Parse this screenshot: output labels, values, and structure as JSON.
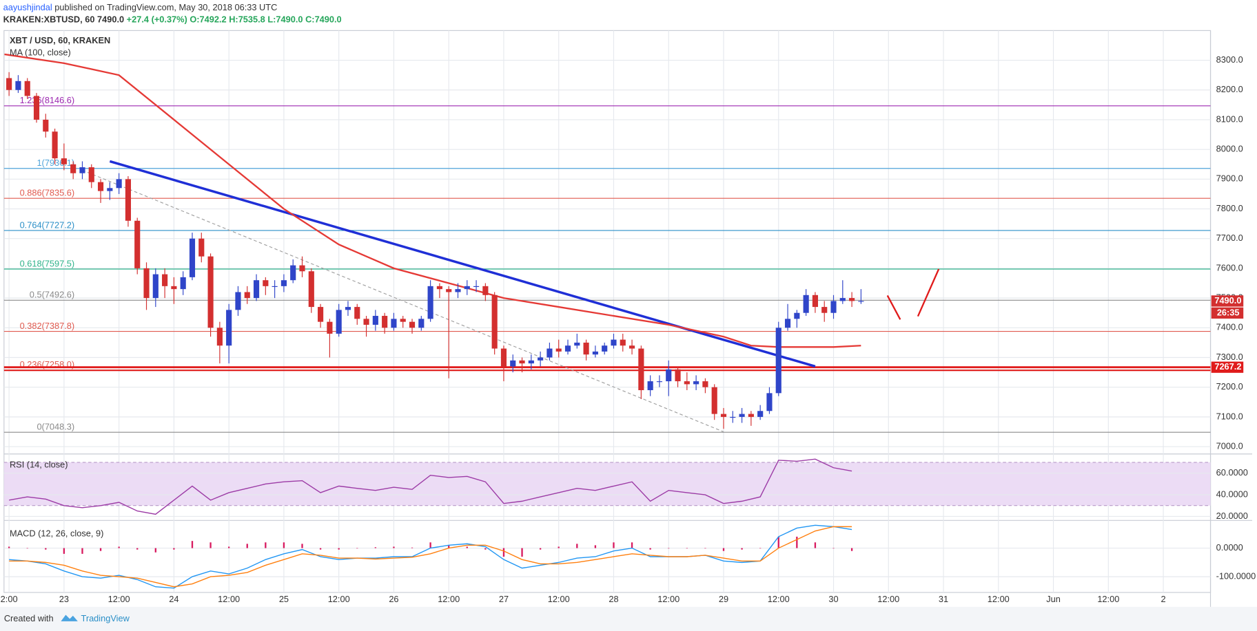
{
  "header": {
    "author": "aayushjindal",
    "published": "published on TradingView.com, May 30, 2018 06:33 UTC",
    "symbol": "KRAKEN:XBTUSD, 60",
    "last": "7490.0",
    "change": "+27.4 (+0.37%)",
    "ohlc": [
      "O:7492.2",
      "H:7535.8",
      "L:7490.0",
      "C:7490.0"
    ]
  },
  "footer": {
    "created": "Created with",
    "brand": "TradingView"
  },
  "chart_data": [
    {
      "type": "candlestick",
      "title": "XBT / USD, 60, KRAKEN",
      "up_color": "#2f45c9",
      "down_color": "#d32f2f",
      "xlim": [
        -13.1,
        250.3
      ],
      "xticks": [
        {
          "value": -12,
          "label": "2:00"
        },
        {
          "value": 0,
          "label": "23"
        },
        {
          "value": 12,
          "label": "12:00"
        },
        {
          "value": 24,
          "label": "24"
        },
        {
          "value": 36,
          "label": "12:00"
        },
        {
          "value": 48,
          "label": "25"
        },
        {
          "value": 60,
          "label": "12:00"
        },
        {
          "value": 72,
          "label": "26"
        },
        {
          "value": 84,
          "label": "12:00"
        },
        {
          "value": 96,
          "label": "27"
        },
        {
          "value": 108,
          "label": "12:00"
        },
        {
          "value": 120,
          "label": "28"
        },
        {
          "value": 132,
          "label": "12:00"
        },
        {
          "value": 144,
          "label": "29"
        },
        {
          "value": 156,
          "label": "12:00"
        },
        {
          "value": 168,
          "label": "30"
        },
        {
          "value": 180,
          "label": "12:00"
        },
        {
          "value": 192,
          "label": "31"
        },
        {
          "value": 204,
          "label": "12:00"
        },
        {
          "value": 216,
          "label": "Jun"
        },
        {
          "value": 228,
          "label": "12:00"
        },
        {
          "value": 240,
          "label": "2"
        }
      ],
      "ylim": [
        6978,
        8400
      ],
      "yticks": [
        {
          "value": 7000,
          "label": "7000.0"
        },
        {
          "value": 7100,
          "label": "7100.0"
        },
        {
          "value": 7200,
          "label": "7200.0"
        },
        {
          "value": 7300,
          "label": "7300.0"
        },
        {
          "value": 7400,
          "label": "7400.0"
        },
        {
          "value": 7500,
          "label": "7500.0"
        },
        {
          "value": 7600,
          "label": "7600.0"
        },
        {
          "value": 7700,
          "label": "7700.0"
        },
        {
          "value": 7800,
          "label": "7800.0"
        },
        {
          "value": 7900,
          "label": "7900.0"
        },
        {
          "value": 8000,
          "label": "8000.0"
        },
        {
          "value": 8100,
          "label": "8100.0"
        },
        {
          "value": 8200,
          "label": "8200.0"
        },
        {
          "value": 8300,
          "label": "8300.0"
        }
      ],
      "grid": true,
      "x": [
        -12,
        -10,
        -8,
        -6,
        -4,
        -2,
        0,
        2,
        4,
        6,
        8,
        10,
        12,
        14,
        16,
        18,
        20,
        22,
        24,
        26,
        28,
        30,
        32,
        34,
        36,
        38,
        40,
        42,
        44,
        46,
        48,
        50,
        52,
        54,
        56,
        58,
        60,
        62,
        64,
        66,
        68,
        70,
        72,
        74,
        76,
        78,
        80,
        82,
        84,
        86,
        88,
        90,
        92,
        94,
        96,
        98,
        100,
        102,
        104,
        106,
        108,
        110,
        112,
        114,
        116,
        118,
        120,
        122,
        124,
        126,
        128,
        130,
        132,
        134,
        136,
        138,
        140,
        142,
        144,
        146,
        148,
        150,
        152,
        154,
        156,
        158,
        160,
        162,
        164,
        166,
        168,
        170,
        172,
        174
      ],
      "candles": [
        [
          8240,
          8260,
          8180,
          8200
        ],
        [
          8200,
          8250,
          8190,
          8230
        ],
        [
          8230,
          8240,
          8170,
          8180
        ],
        [
          8180,
          8190,
          8090,
          8100
        ],
        [
          8100,
          8120,
          8040,
          8060
        ],
        [
          8060,
          8070,
          7950,
          7970
        ],
        [
          7970,
          8020,
          7930,
          7950
        ],
        [
          7950,
          7960,
          7900,
          7920
        ],
        [
          7920,
          7960,
          7900,
          7940
        ],
        [
          7940,
          7950,
          7870,
          7890
        ],
        [
          7890,
          7900,
          7820,
          7860
        ],
        [
          7860,
          7890,
          7830,
          7870
        ],
        [
          7870,
          7920,
          7850,
          7900
        ],
        [
          7900,
          7910,
          7740,
          7760
        ],
        [
          7760,
          7770,
          7580,
          7600
        ],
        [
          7600,
          7620,
          7460,
          7500
        ],
        [
          7500,
          7600,
          7470,
          7580
        ],
        [
          7580,
          7600,
          7500,
          7540
        ],
        [
          7540,
          7570,
          7480,
          7530
        ],
        [
          7530,
          7590,
          7510,
          7570
        ],
        [
          7570,
          7720,
          7560,
          7700
        ],
        [
          7700,
          7720,
          7620,
          7640
        ],
        [
          7640,
          7650,
          7370,
          7400
        ],
        [
          7400,
          7420,
          7280,
          7340
        ],
        [
          7340,
          7480,
          7280,
          7460
        ],
        [
          7460,
          7540,
          7440,
          7520
        ],
        [
          7520,
          7540,
          7480,
          7500
        ],
        [
          7500,
          7580,
          7490,
          7560
        ],
        [
          7560,
          7570,
          7510,
          7540
        ],
        [
          7540,
          7560,
          7500,
          7540
        ],
        [
          7540,
          7580,
          7520,
          7560
        ],
        [
          7560,
          7630,
          7550,
          7610
        ],
        [
          7610,
          7640,
          7570,
          7590
        ],
        [
          7590,
          7600,
          7450,
          7470
        ],
        [
          7470,
          7480,
          7400,
          7420
        ],
        [
          7420,
          7430,
          7300,
          7380
        ],
        [
          7380,
          7480,
          7370,
          7460
        ],
        [
          7460,
          7490,
          7440,
          7470
        ],
        [
          7470,
          7480,
          7410,
          7430
        ],
        [
          7430,
          7440,
          7370,
          7410
        ],
        [
          7410,
          7460,
          7390,
          7440
        ],
        [
          7440,
          7450,
          7380,
          7400
        ],
        [
          7400,
          7450,
          7390,
          7430
        ],
        [
          7430,
          7440,
          7400,
          7420
        ],
        [
          7420,
          7430,
          7380,
          7400
        ],
        [
          7400,
          7440,
          7390,
          7430
        ],
        [
          7430,
          7560,
          7420,
          7540
        ],
        [
          7540,
          7550,
          7500,
          7530
        ],
        [
          7530,
          7540,
          7230,
          7520
        ],
        [
          7520,
          7550,
          7500,
          7530
        ],
        [
          7530,
          7560,
          7510,
          7540
        ],
        [
          7540,
          7560,
          7520,
          7540
        ],
        [
          7540,
          7550,
          7490,
          7510
        ],
        [
          7510,
          7520,
          7310,
          7330
        ],
        [
          7330,
          7340,
          7220,
          7270
        ],
        [
          7270,
          7310,
          7250,
          7290
        ],
        [
          7290,
          7300,
          7250,
          7280
        ],
        [
          7280,
          7310,
          7260,
          7290
        ],
        [
          7290,
          7320,
          7270,
          7300
        ],
        [
          7300,
          7350,
          7290,
          7330
        ],
        [
          7330,
          7360,
          7300,
          7320
        ],
        [
          7320,
          7360,
          7310,
          7340
        ],
        [
          7340,
          7380,
          7330,
          7350
        ],
        [
          7350,
          7360,
          7290,
          7310
        ],
        [
          7310,
          7340,
          7300,
          7320
        ],
        [
          7320,
          7350,
          7310,
          7340
        ],
        [
          7340,
          7380,
          7330,
          7360
        ],
        [
          7360,
          7380,
          7320,
          7340
        ],
        [
          7340,
          7360,
          7310,
          7330
        ],
        [
          7330,
          7340,
          7160,
          7190
        ],
        [
          7190,
          7240,
          7170,
          7220
        ],
        [
          7220,
          7240,
          7200,
          7220
        ],
        [
          7220,
          7290,
          7170,
          7260
        ],
        [
          7260,
          7270,
          7200,
          7220
        ],
        [
          7220,
          7250,
          7190,
          7210
        ],
        [
          7210,
          7240,
          7190,
          7220
        ],
        [
          7220,
          7230,
          7180,
          7200
        ],
        [
          7200,
          7210,
          7090,
          7110
        ],
        [
          7110,
          7130,
          7060,
          7100
        ],
        [
          7100,
          7120,
          7080,
          7100
        ],
        [
          7100,
          7130,
          7080,
          7110
        ],
        [
          7110,
          7120,
          7070,
          7100
        ],
        [
          7100,
          7140,
          7090,
          7120
        ],
        [
          7120,
          7200,
          7110,
          7180
        ],
        [
          7180,
          7420,
          7170,
          7400
        ],
        [
          7400,
          7480,
          7390,
          7430
        ],
        [
          7430,
          7460,
          7400,
          7450
        ],
        [
          7450,
          7530,
          7440,
          7510
        ],
        [
          7510,
          7520,
          7450,
          7470
        ],
        [
          7470,
          7490,
          7420,
          7450
        ],
        [
          7450,
          7510,
          7430,
          7490
        ],
        [
          7490,
          7560,
          7480,
          7500
        ],
        [
          7500,
          7520,
          7470,
          7490
        ],
        [
          7490,
          7530,
          7480,
          7490
        ]
      ],
      "series": [
        {
          "name": "MA (100, close)",
          "color": "#e53935",
          "x": [
            -13,
            0,
            12,
            24,
            36,
            48,
            60,
            72,
            84,
            96,
            108,
            120,
            132,
            144,
            150,
            156,
            168,
            174
          ],
          "values": [
            8320,
            8290,
            8250,
            8100,
            7950,
            7800,
            7680,
            7600,
            7550,
            7500,
            7470,
            7440,
            7410,
            7370,
            7340,
            7335,
            7335,
            7340
          ]
        }
      ],
      "levels": [
        {
          "label": "1.236(8146.6)",
          "value": 8146.6,
          "color": "#9c27b0"
        },
        {
          "label": "1(7936.1)",
          "value": 7936.1,
          "color": "#4fa3d9"
        },
        {
          "label": "0.886(7835.6)",
          "value": 7835.6,
          "color": "#e05a4f"
        },
        {
          "label": "0.764(7727.2)",
          "value": 7727.2,
          "color": "#2a8fc7"
        },
        {
          "label": "0.618(7597.5)",
          "value": 7597.5,
          "color": "#2fb38a"
        },
        {
          "label": "0.5(7492.6)",
          "value": 7492.6,
          "color": "#8a8a8a"
        },
        {
          "label": "0.382(7387.8)",
          "value": 7387.8,
          "color": "#e05a4f"
        },
        {
          "label": "0.236(7258.0)",
          "value": 7258.0,
          "color": "#e05a4f"
        },
        {
          "label": "0(7048.3)",
          "value": 7048.3,
          "color": "#8a8a8a"
        }
      ],
      "trendlines": [
        {
          "color": "#1f2fd6",
          "x": [
            10,
            164
          ],
          "values": [
            7960,
            7270
          ]
        },
        {
          "color": "#a0a0a0",
          "x": [
            4,
            144
          ],
          "values": [
            7930,
            7050
          ]
        }
      ],
      "support": {
        "value": 7267.2,
        "label": "7267.2",
        "color": "#e01b1b"
      },
      "last_price": {
        "value": 7490.0,
        "label": "7490.0",
        "color": "#d32f2f"
      },
      "countdown": "26:35"
    },
    {
      "type": "line",
      "title": "RSI (14, close)",
      "color": "#9c3ba6",
      "band": [
        30,
        70
      ],
      "band_color": "#ecdcf5",
      "ylim": [
        17,
        77
      ],
      "yticks": [
        {
          "value": 20,
          "label": "20.0000"
        },
        {
          "value": 40,
          "label": "40.0000"
        },
        {
          "value": 60,
          "label": "60.0000"
        }
      ],
      "x": [
        -12,
        -8,
        -4,
        0,
        4,
        8,
        12,
        16,
        20,
        24,
        28,
        32,
        36,
        40,
        44,
        48,
        52,
        56,
        60,
        64,
        68,
        72,
        76,
        80,
        84,
        88,
        92,
        96,
        100,
        104,
        108,
        112,
        116,
        120,
        124,
        128,
        132,
        136,
        140,
        144,
        148,
        152,
        156,
        160,
        164,
        168,
        172
      ],
      "values": [
        35,
        38,
        36,
        30,
        28,
        30,
        33,
        25,
        22,
        35,
        48,
        35,
        42,
        46,
        50,
        52,
        53,
        42,
        48,
        46,
        44,
        47,
        45,
        58,
        56,
        57,
        52,
        32,
        34,
        38,
        42,
        46,
        44,
        48,
        52,
        34,
        44,
        42,
        40,
        32,
        34,
        38,
        72,
        71,
        73,
        65,
        62
      ]
    },
    {
      "type": "macd",
      "title": "MACD (12, 26, close, 9)",
      "ylim": [
        -155,
        94
      ],
      "yticks": [
        {
          "value": -100,
          "label": "-100.0000"
        },
        {
          "value": 0,
          "label": "0.0000"
        }
      ],
      "x": [
        -12,
        -8,
        -4,
        0,
        4,
        8,
        12,
        16,
        20,
        24,
        28,
        32,
        36,
        40,
        44,
        48,
        52,
        56,
        60,
        64,
        68,
        72,
        76,
        80,
        84,
        88,
        92,
        96,
        100,
        104,
        108,
        112,
        116,
        120,
        124,
        128,
        132,
        136,
        140,
        144,
        148,
        152,
        156,
        160,
        164,
        168,
        172
      ],
      "series": [
        {
          "color": "#2196f3",
          "values": [
            -40,
            -45,
            -55,
            -80,
            -100,
            -105,
            -95,
            -110,
            -135,
            -140,
            -100,
            -80,
            -90,
            -70,
            -40,
            -20,
            -5,
            -30,
            -40,
            -35,
            -35,
            -30,
            -30,
            0,
            10,
            15,
            5,
            -40,
            -70,
            -60,
            -50,
            -35,
            -30,
            -10,
            0,
            -30,
            -30,
            -30,
            -25,
            -45,
            -50,
            -45,
            40,
            70,
            80,
            75,
            65
          ]
        },
        {
          "color": "#ff7f0e",
          "values": [
            -45,
            -45,
            -50,
            -60,
            -80,
            -95,
            -100,
            -105,
            -120,
            -135,
            -125,
            -100,
            -95,
            -85,
            -60,
            -40,
            -20,
            -25,
            -35,
            -35,
            -38,
            -35,
            -32,
            -20,
            0,
            10,
            10,
            -10,
            -40,
            -55,
            -55,
            -50,
            -40,
            -30,
            -20,
            -25,
            -30,
            -30,
            -25,
            -35,
            -45,
            -45,
            0,
            30,
            60,
            75,
            75
          ]
        }
      ],
      "histogram": {
        "color": "#d81b60",
        "values": [
          5,
          0,
          -5,
          -20,
          -20,
          -10,
          5,
          -5,
          -15,
          -5,
          25,
          20,
          5,
          15,
          20,
          20,
          15,
          -5,
          -5,
          0,
          3,
          5,
          2,
          20,
          10,
          5,
          -5,
          -30,
          -30,
          -5,
          5,
          15,
          10,
          20,
          20,
          -5,
          0,
          0,
          0,
          -10,
          -5,
          0,
          40,
          40,
          20,
          0,
          -10
        ]
      }
    }
  ]
}
